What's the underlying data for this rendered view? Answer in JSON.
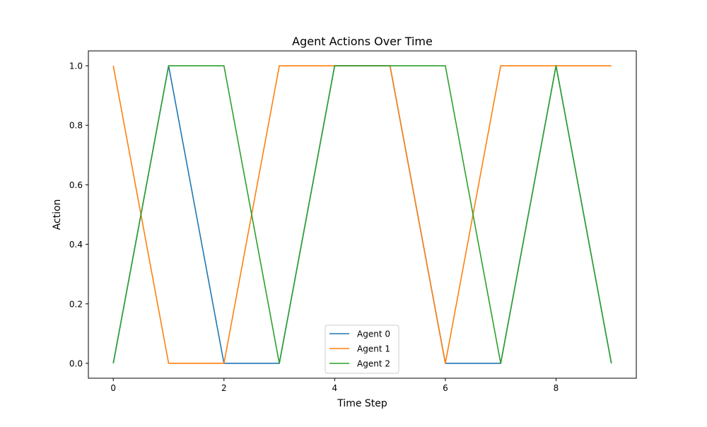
{
  "chart_data": {
    "type": "line",
    "title": "Agent Actions Over Time",
    "xlabel": "Time Step",
    "ylabel": "Action",
    "x": [
      0,
      1,
      2,
      3,
      4,
      5,
      6,
      7,
      8,
      9
    ],
    "xlim": [
      -0.45,
      9.45
    ],
    "ylim": [
      -0.05,
      1.05
    ],
    "xticks": [
      0,
      2,
      4,
      6,
      8
    ],
    "xtick_labels": [
      "0",
      "2",
      "4",
      "6",
      "8"
    ],
    "yticks": [
      0.0,
      0.2,
      0.4,
      0.6,
      0.8,
      1.0
    ],
    "ytick_labels": [
      "0.0",
      "0.2",
      "0.4",
      "0.6",
      "0.8",
      "1.0"
    ],
    "grid": false,
    "legend_position": "lower center",
    "series": [
      {
        "name": "Agent 0",
        "color": "#1f77b4",
        "values": [
          0,
          1,
          0,
          0,
          1,
          1,
          0,
          0,
          1,
          0
        ]
      },
      {
        "name": "Agent 1",
        "color": "#ff7f0e",
        "values": [
          1,
          0,
          0,
          1,
          1,
          1,
          0,
          1,
          1,
          1
        ]
      },
      {
        "name": "Agent 2",
        "color": "#2ca02c",
        "values": [
          0,
          1,
          1,
          0,
          1,
          1,
          1,
          0,
          1,
          0
        ]
      }
    ]
  }
}
